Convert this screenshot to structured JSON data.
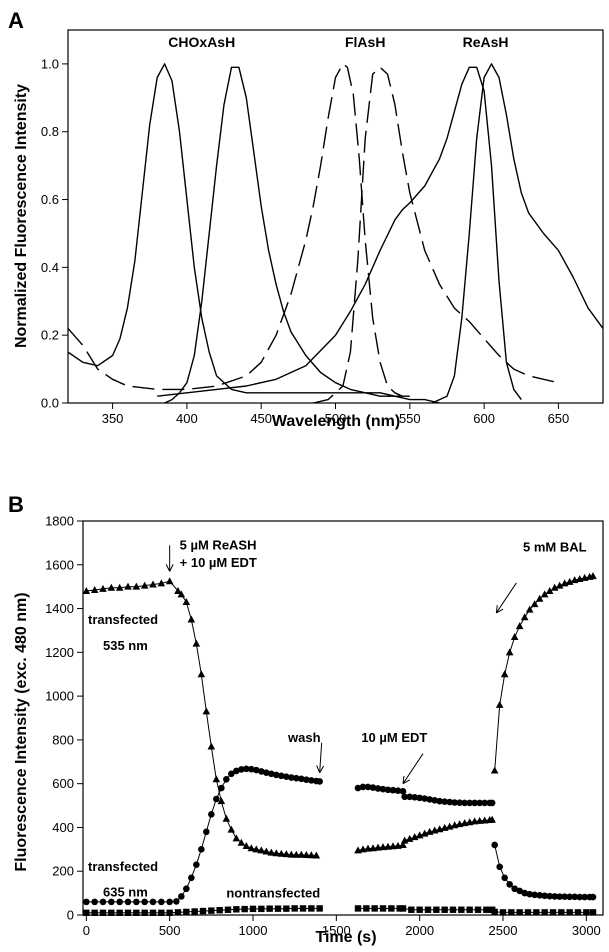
{
  "chart_data": [
    {
      "panel_label": "A",
      "type": "line",
      "xlabel": "Wavelength (nm)",
      "ylabel": "Normalized Fluorescence Intensity",
      "xlim": [
        320,
        680
      ],
      "ylim": [
        0,
        1.1
      ],
      "xticks": [
        350,
        400,
        450,
        500,
        550,
        600,
        650
      ],
      "yticks": [
        "0.0",
        "0.2",
        "0.4",
        "0.6",
        "0.8",
        "1.0"
      ],
      "grid": false,
      "annotations": [
        {
          "text": "CHOxAsH",
          "x": 410,
          "y": 1.05
        },
        {
          "text": "FlAsH",
          "x": 520,
          "y": 1.05
        },
        {
          "text": "ReAsH",
          "x": 601,
          "y": 1.05
        }
      ],
      "series": [
        {
          "group": "CHOxAsH",
          "role": "excitation",
          "style": "solid",
          "x": [
            320,
            330,
            340,
            350,
            355,
            360,
            365,
            370,
            375,
            380,
            385,
            390,
            395,
            400,
            405,
            410,
            415,
            420,
            430,
            440,
            450,
            460,
            470,
            480,
            490,
            500,
            510,
            520,
            530,
            540,
            545
          ],
          "y": [
            0.15,
            0.12,
            0.11,
            0.14,
            0.19,
            0.28,
            0.42,
            0.62,
            0.82,
            0.96,
            1.0,
            0.95,
            0.8,
            0.6,
            0.4,
            0.25,
            0.15,
            0.08,
            0.04,
            0.03,
            0.03,
            0.03,
            0.03,
            0.03,
            0.03,
            0.03,
            0.03,
            0.03,
            0.03,
            0.02,
            0.02
          ]
        },
        {
          "group": "CHOxAsH",
          "role": "emission",
          "style": "solid",
          "x": [
            385,
            390,
            395,
            400,
            405,
            410,
            415,
            420,
            425,
            430,
            435,
            440,
            445,
            450,
            455,
            460,
            465,
            470,
            480,
            490,
            500,
            510,
            520,
            530,
            540,
            550,
            560,
            570
          ],
          "y": [
            0.0,
            0.01,
            0.03,
            0.06,
            0.14,
            0.3,
            0.5,
            0.7,
            0.88,
            0.99,
            0.99,
            0.9,
            0.74,
            0.58,
            0.45,
            0.35,
            0.27,
            0.21,
            0.14,
            0.09,
            0.06,
            0.04,
            0.03,
            0.02,
            0.02,
            0.01,
            0.01,
            0.0
          ]
        },
        {
          "group": "FlAsH",
          "role": "excitation",
          "style": "dashed",
          "x": [
            320,
            330,
            340,
            350,
            360,
            380,
            400,
            420,
            440,
            450,
            460,
            470,
            480,
            485,
            490,
            495,
            500,
            505,
            508,
            512,
            516,
            520,
            525,
            530,
            535,
            540,
            545,
            550
          ],
          "y": [
            0.22,
            0.17,
            0.1,
            0.07,
            0.05,
            0.04,
            0.04,
            0.05,
            0.08,
            0.12,
            0.2,
            0.32,
            0.48,
            0.58,
            0.7,
            0.84,
            0.96,
            1.0,
            0.99,
            0.91,
            0.72,
            0.48,
            0.25,
            0.12,
            0.05,
            0.03,
            0.02,
            0.02
          ]
        },
        {
          "group": "FlAsH",
          "role": "emission",
          "style": "dashed",
          "x": [
            485,
            495,
            505,
            510,
            515,
            520,
            525,
            530,
            535,
            540,
            545,
            550,
            560,
            570,
            580,
            590,
            600,
            610,
            620,
            630,
            640,
            650
          ],
          "y": [
            0.0,
            0.01,
            0.05,
            0.15,
            0.42,
            0.78,
            0.97,
            0.99,
            0.97,
            0.88,
            0.74,
            0.62,
            0.45,
            0.35,
            0.28,
            0.24,
            0.19,
            0.14,
            0.1,
            0.08,
            0.07,
            0.06
          ]
        },
        {
          "group": "ReAsH",
          "role": "excitation",
          "style": "solid",
          "x": [
            380,
            400,
            420,
            440,
            460,
            480,
            500,
            510,
            520,
            530,
            540,
            545,
            550,
            560,
            570,
            575,
            580,
            585,
            590,
            595,
            600,
            605,
            610,
            615,
            620,
            625
          ],
          "y": [
            0.02,
            0.03,
            0.04,
            0.05,
            0.07,
            0.11,
            0.2,
            0.27,
            0.35,
            0.45,
            0.54,
            0.57,
            0.59,
            0.64,
            0.72,
            0.78,
            0.86,
            0.94,
            0.99,
            0.99,
            0.92,
            0.7,
            0.36,
            0.12,
            0.04,
            0.01
          ]
        },
        {
          "group": "ReAsH",
          "role": "emission",
          "style": "solid",
          "x": [
            565,
            575,
            580,
            585,
            590,
            595,
            600,
            605,
            610,
            615,
            620,
            625,
            630,
            640,
            650,
            660,
            670,
            680
          ],
          "y": [
            0.0,
            0.02,
            0.08,
            0.25,
            0.5,
            0.78,
            0.96,
            1.0,
            0.96,
            0.85,
            0.72,
            0.62,
            0.56,
            0.5,
            0.45,
            0.37,
            0.28,
            0.22
          ]
        }
      ]
    },
    {
      "panel_label": "B",
      "type": "line",
      "xlabel": "Time (s)",
      "ylabel": "Fluorescence Intensity (exc. 480 nm)",
      "xlim": [
        -20,
        3100
      ],
      "ylim": [
        0,
        1800
      ],
      "xticks": [
        0,
        500,
        1000,
        1500,
        2000,
        2500,
        3000
      ],
      "yticks": [
        0,
        200,
        400,
        600,
        800,
        1000,
        1200,
        1400,
        1600,
        1800
      ],
      "grid": false,
      "series_labels": [
        {
          "text": "transfected",
          "x": 10,
          "y": 1330
        },
        {
          "text": "535 nm",
          "x": 100,
          "y": 1210
        },
        {
          "text": "transfected",
          "x": 10,
          "y": 200
        },
        {
          "text": "635 nm",
          "x": 100,
          "y": 85
        },
        {
          "text": "nontransfected",
          "x": 840,
          "y": 80
        }
      ],
      "annotations": [
        {
          "text": "5 µM ReASH",
          "x": 560,
          "y": 1670,
          "arrow_to": [
            500,
            1570
          ]
        },
        {
          "text": "+ 10 µM EDT",
          "x": 560,
          "y": 1590
        },
        {
          "text": "wash",
          "x": 1210,
          "y": 790,
          "arrow_to": [
            1400,
            650
          ]
        },
        {
          "text": "10 µM EDT",
          "x": 1650,
          "y": 790,
          "arrow_to": [
            1900,
            600
          ]
        },
        {
          "text": "5 mM BAL",
          "x": 2620,
          "y": 1660,
          "arrow_to": [
            2460,
            1380
          ]
        }
      ],
      "series": [
        {
          "name": "transfected 535 nm",
          "marker": "triangle",
          "x": [
            0,
            50,
            100,
            150,
            200,
            250,
            300,
            350,
            400,
            450,
            500,
            550,
            570,
            600,
            630,
            660,
            690,
            720,
            750,
            780,
            810,
            840,
            870,
            900,
            930,
            960,
            990,
            1020,
            1050,
            1080,
            1110,
            1140,
            1170,
            1200,
            1230,
            1260,
            1290,
            1320,
            1350,
            1380,
            null,
            1630,
            1660,
            1690,
            1720,
            1750,
            1780,
            1810,
            1840,
            1870,
            1900,
            1910,
            1940,
            1970,
            2000,
            2030,
            2060,
            2090,
            2120,
            2150,
            2180,
            2210,
            2240,
            2270,
            2300,
            2330,
            2360,
            2390,
            2420,
            2435,
            null,
            2450,
            2480,
            2510,
            2540,
            2570,
            2600,
            2630,
            2660,
            2690,
            2720,
            2750,
            2780,
            2810,
            2840,
            2870,
            2900,
            2930,
            2960,
            2990,
            3020,
            3040
          ],
          "y": [
            1480,
            1485,
            1490,
            1495,
            1495,
            1500,
            1500,
            1505,
            1510,
            1515,
            1525,
            1480,
            1465,
            1430,
            1350,
            1240,
            1100,
            930,
            770,
            620,
            520,
            440,
            390,
            350,
            330,
            315,
            305,
            300,
            295,
            290,
            285,
            282,
            280,
            278,
            276,
            275,
            275,
            274,
            273,
            272,
            null,
            295,
            300,
            303,
            305,
            308,
            310,
            312,
            314,
            316,
            320,
            340,
            348,
            356,
            364,
            372,
            380,
            386,
            392,
            398,
            404,
            410,
            415,
            420,
            424,
            428,
            430,
            432,
            434,
            435,
            null,
            660,
            960,
            1100,
            1200,
            1270,
            1320,
            1360,
            1395,
            1420,
            1445,
            1465,
            1480,
            1495,
            1505,
            1515,
            1522,
            1530,
            1535,
            1540,
            1545,
            1548
          ]
        },
        {
          "name": "transfected 635 nm",
          "marker": "circle",
          "x": [
            0,
            50,
            100,
            150,
            200,
            250,
            300,
            350,
            400,
            450,
            500,
            540,
            570,
            600,
            630,
            660,
            690,
            720,
            750,
            780,
            810,
            840,
            870,
            900,
            930,
            960,
            990,
            1020,
            1050,
            1080,
            1110,
            1140,
            1170,
            1200,
            1230,
            1260,
            1290,
            1320,
            1350,
            1380,
            1400,
            null,
            1630,
            1660,
            1690,
            1720,
            1750,
            1780,
            1810,
            1840,
            1870,
            1900,
            1910,
            1940,
            1970,
            2000,
            2030,
            2060,
            2090,
            2120,
            2150,
            2180,
            2210,
            2240,
            2270,
            2300,
            2330,
            2360,
            2390,
            2420,
            2435,
            null,
            2450,
            2480,
            2510,
            2540,
            2570,
            2600,
            2630,
            2660,
            2690,
            2720,
            2750,
            2780,
            2810,
            2840,
            2870,
            2900,
            2930,
            2960,
            2990,
            3020,
            3040
          ],
          "y": [
            60,
            60,
            60,
            60,
            60,
            60,
            60,
            60,
            60,
            60,
            60,
            62,
            85,
            120,
            170,
            230,
            300,
            380,
            460,
            530,
            580,
            620,
            645,
            658,
            665,
            668,
            666,
            662,
            656,
            650,
            645,
            640,
            636,
            632,
            628,
            625,
            622,
            618,
            615,
            612,
            610,
            null,
            580,
            585,
            585,
            582,
            578,
            575,
            572,
            570,
            568,
            565,
            540,
            540,
            538,
            535,
            532,
            528,
            524,
            520,
            518,
            516,
            514,
            513,
            512,
            512,
            512,
            512,
            512,
            512,
            512,
            null,
            320,
            220,
            170,
            140,
            120,
            110,
            100,
            95,
            92,
            90,
            88,
            86,
            85,
            84,
            84,
            83,
            83,
            82,
            82,
            82,
            82
          ]
        },
        {
          "name": "nontransfected",
          "marker": "square",
          "x": [
            0,
            50,
            100,
            150,
            200,
            250,
            300,
            350,
            400,
            450,
            500,
            550,
            600,
            650,
            700,
            750,
            800,
            850,
            900,
            950,
            1000,
            1050,
            1100,
            1150,
            1200,
            1250,
            1300,
            1350,
            1400,
            null,
            1630,
            1680,
            1730,
            1780,
            1830,
            1880,
            1900,
            1950,
            2000,
            2050,
            2100,
            2150,
            2200,
            2250,
            2300,
            2350,
            2400,
            2435,
            null,
            2450,
            2500,
            2550,
            2600,
            2650,
            2700,
            2750,
            2800,
            2850,
            2900,
            2950,
            3000,
            3040
          ],
          "y": [
            10,
            10,
            10,
            10,
            10,
            10,
            10,
            10,
            10,
            10,
            10,
            12,
            14,
            16,
            18,
            20,
            22,
            24,
            26,
            27,
            28,
            28,
            29,
            29,
            29,
            30,
            30,
            30,
            30,
            null,
            30,
            30,
            30,
            30,
            30,
            30,
            30,
            24,
            24,
            24,
            24,
            24,
            24,
            24,
            24,
            24,
            24,
            24,
            null,
            14,
            12,
            12,
            12,
            12,
            12,
            12,
            12,
            12,
            12,
            12,
            12,
            12
          ]
        }
      ]
    }
  ]
}
